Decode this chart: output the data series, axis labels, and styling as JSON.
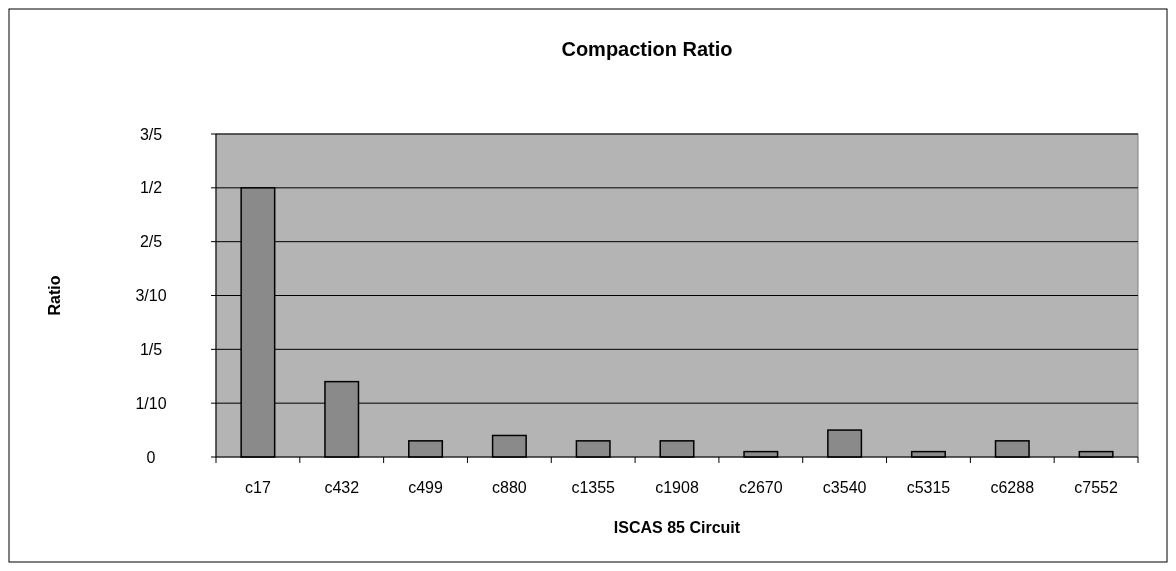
{
  "chart_data": {
    "type": "bar",
    "title": "Compaction Ratio",
    "xlabel": "ISCAS 85 Circuit",
    "ylabel": "Ratio",
    "categories": [
      "c17",
      "c432",
      "c499",
      "c880",
      "c1355",
      "c1908",
      "c2670",
      "c3540",
      "c5315",
      "c6288",
      "c7552"
    ],
    "values": [
      0.5,
      0.14,
      0.03,
      0.04,
      0.03,
      0.03,
      0.01,
      0.05,
      0.01,
      0.03,
      0.01
    ],
    "color": "#8a8a8a",
    "ylim": [
      0,
      0.6
    ],
    "yticks": [
      0,
      {
        "value": 0.1,
        "label": "1/10"
      },
      {
        "value": 0.2,
        "label": "1/5"
      },
      {
        "value": 0.3,
        "label": "3/10"
      },
      {
        "value": 0.4,
        "label": "2/5"
      },
      {
        "value": 0.5,
        "label": "1/2"
      },
      {
        "value": 0.6,
        "label": "3/5"
      }
    ],
    "grid": "y"
  }
}
